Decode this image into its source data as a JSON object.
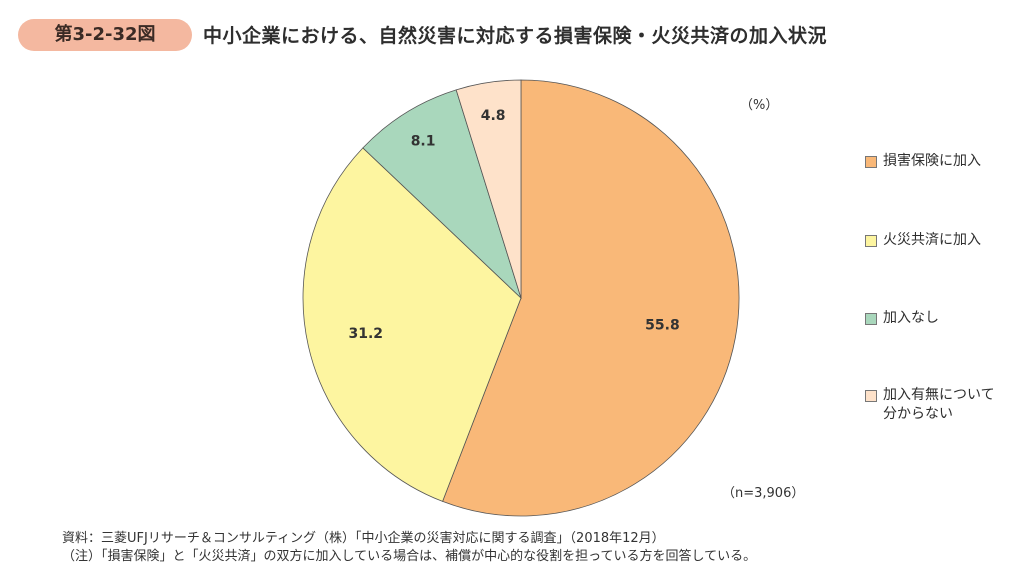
{
  "figure_number": "第3-2-32図",
  "chart_data": {
    "type": "pie",
    "title": "中小企業における、自然災害に対応する損害保険・火災共済の加入状況",
    "unit": "（%）",
    "sample_size": "（n=3,906）",
    "start_angle": "top, clockwise",
    "legend_position": "right",
    "slices": [
      {
        "name": "損害保険に加入",
        "value": 55.8,
        "label": "55.8",
        "color": "#F9B878"
      },
      {
        "name": "火災共済に加入",
        "value": 31.2,
        "label": "31.2",
        "color": "#FDF5A0"
      },
      {
        "name": "加入なし",
        "value": 8.1,
        "label": "8.1",
        "color": "#A9D7BC"
      },
      {
        "name": "加入有無について\n分からない",
        "value": 4.8,
        "label": "4.8",
        "color": "#FEE2CA"
      }
    ]
  },
  "notes": {
    "source": "資料：三菱UFJリサーチ＆コンサルティング（株）「中小企業の災害対応に関する調査」（2018年12月）",
    "note": "（注）「損害保険」と「火災共済」の双方に加入している場合は、補償が中心的な役割を担っている方を回答している。"
  }
}
